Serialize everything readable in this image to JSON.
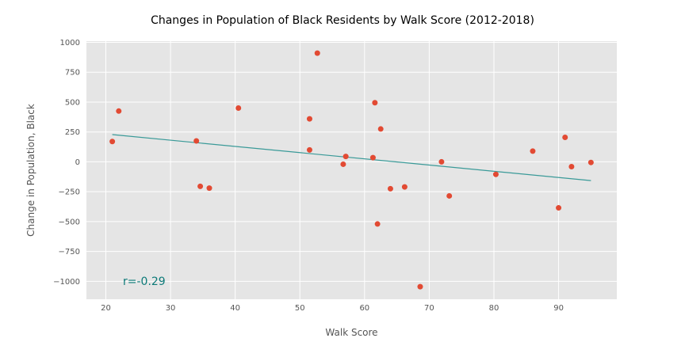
{
  "chart_data": {
    "type": "scatter",
    "title": "Changes in Population of Black Residents by Walk Score (2012-2018)",
    "xlabel": "Walk Score",
    "ylabel": "Change in Population, Black",
    "xlim": [
      17,
      99
    ],
    "ylim": [
      -1150,
      1010
    ],
    "xticks": [
      20,
      30,
      40,
      50,
      60,
      70,
      80,
      90
    ],
    "yticks": [
      1000,
      750,
      500,
      250,
      0,
      -250,
      -500,
      -750,
      -1000
    ],
    "ytick_labels": [
      "1000",
      "750",
      "500",
      "250",
      "0",
      "−250",
      "−500",
      "−750",
      "−1000"
    ],
    "grid": true,
    "points": [
      {
        "x": 21,
        "y": 170
      },
      {
        "x": 22,
        "y": 425
      },
      {
        "x": 34,
        "y": 175
      },
      {
        "x": 34.6,
        "y": -205
      },
      {
        "x": 36,
        "y": -220
      },
      {
        "x": 40.5,
        "y": 450
      },
      {
        "x": 51.5,
        "y": 360
      },
      {
        "x": 51.5,
        "y": 100
      },
      {
        "x": 52.7,
        "y": 910
      },
      {
        "x": 56.7,
        "y": -20
      },
      {
        "x": 57.1,
        "y": 45
      },
      {
        "x": 61.3,
        "y": 35
      },
      {
        "x": 61.6,
        "y": 495
      },
      {
        "x": 62,
        "y": -520
      },
      {
        "x": 62.5,
        "y": 275
      },
      {
        "x": 64,
        "y": -225
      },
      {
        "x": 66.2,
        "y": -210
      },
      {
        "x": 68.6,
        "y": -1045
      },
      {
        "x": 71.9,
        "y": 0
      },
      {
        "x": 73.1,
        "y": -285
      },
      {
        "x": 80.3,
        "y": -105
      },
      {
        "x": 86,
        "y": 90
      },
      {
        "x": 90,
        "y": -385
      },
      {
        "x": 91,
        "y": 205
      },
      {
        "x": 92,
        "y": -40
      },
      {
        "x": 95,
        "y": -5
      }
    ],
    "trendline": {
      "x": [
        21,
        95
      ],
      "y": [
        228,
        -157
      ]
    },
    "annotation": "r=-0.29",
    "colors": {
      "points": "#e24a33",
      "trendline": "#3a9a98",
      "annotation": "#0c7a78",
      "plot_background": "#e5e5e5",
      "grid": "#ffffff"
    }
  }
}
